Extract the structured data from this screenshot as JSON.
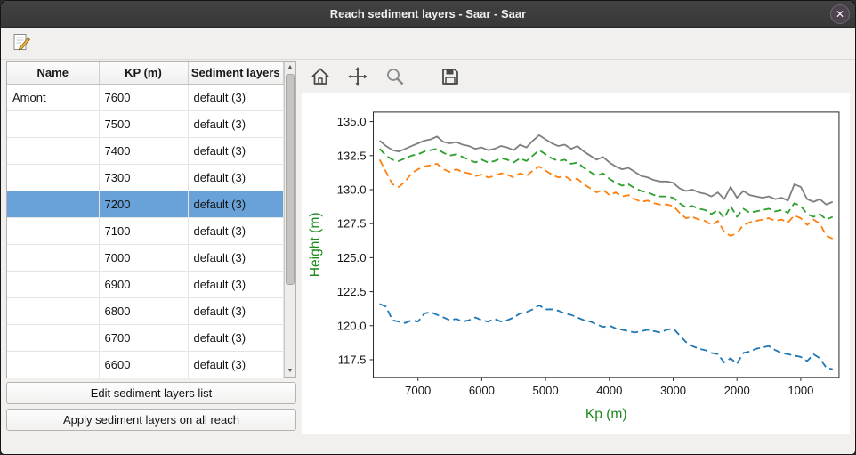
{
  "window": {
    "title": "Reach sediment layers - Saar - Saar",
    "close_glyph": "✕"
  },
  "main_toolbar": {
    "edit_icon": "edit-sediment-note-icon"
  },
  "table": {
    "headers": [
      "Name",
      "KP (m)",
      "Sediment layers"
    ],
    "selected_kp": "7200",
    "rows": [
      {
        "name": "Amont",
        "kp": "7600",
        "layers": "default (3)"
      },
      {
        "name": "",
        "kp": "7500",
        "layers": "default (3)"
      },
      {
        "name": "",
        "kp": "7400",
        "layers": "default (3)"
      },
      {
        "name": "",
        "kp": "7300",
        "layers": "default (3)"
      },
      {
        "name": "",
        "kp": "7200",
        "layers": "default (3)"
      },
      {
        "name": "",
        "kp": "7100",
        "layers": "default (3)"
      },
      {
        "name": "",
        "kp": "7000",
        "layers": "default (3)"
      },
      {
        "name": "",
        "kp": "6900",
        "layers": "default (3)"
      },
      {
        "name": "",
        "kp": "6800",
        "layers": "default (3)"
      },
      {
        "name": "",
        "kp": "6700",
        "layers": "default (3)"
      },
      {
        "name": "",
        "kp": "6600",
        "layers": "default (3)"
      }
    ]
  },
  "buttons": {
    "edit_list": "Edit sediment layers list",
    "apply_all": "Apply sediment layers on all reach"
  },
  "chart_toolbar": {
    "icons": [
      "home",
      "pan",
      "zoom",
      "save"
    ]
  },
  "colors": {
    "selection": "#68a2d8",
    "axis_label": "#1e8b1e"
  },
  "chart_data": {
    "type": "line",
    "title": "",
    "xlabel": "Kp (m)",
    "ylabel": "Height (m)",
    "axis_label_color": "#1e8b1e",
    "x_inverted": true,
    "xlim": [
      7700,
      400
    ],
    "ylim": [
      116.2,
      135.7
    ],
    "xticks": [
      7000,
      6000,
      5000,
      4000,
      3000,
      2000,
      1000
    ],
    "yticks": [
      117.5,
      120.0,
      122.5,
      125.0,
      127.5,
      130.0,
      132.5,
      135.0
    ],
    "grid": false,
    "legend": "none",
    "x": [
      7600,
      7500,
      7400,
      7300,
      7200,
      7100,
      7000,
      6900,
      6800,
      6700,
      6600,
      6500,
      6400,
      6300,
      6200,
      6100,
      6000,
      5900,
      5800,
      5700,
      5600,
      5500,
      5400,
      5300,
      5200,
      5100,
      5000,
      4900,
      4800,
      4700,
      4600,
      4500,
      4400,
      4300,
      4200,
      4100,
      4000,
      3900,
      3800,
      3700,
      3600,
      3500,
      3400,
      3300,
      3200,
      3100,
      3000,
      2900,
      2800,
      2700,
      2600,
      2500,
      2400,
      2300,
      2200,
      2100,
      2000,
      1900,
      1800,
      1700,
      1600,
      1500,
      1400,
      1300,
      1200,
      1100,
      1000,
      900,
      800,
      700,
      600,
      500
    ],
    "series": [
      {
        "name": "top-profile-gray",
        "color": "#7f7f7f",
        "dash": "solid",
        "values": [
          133.6,
          133.2,
          132.9,
          132.8,
          133.0,
          133.2,
          133.4,
          133.6,
          133.7,
          133.9,
          133.5,
          133.4,
          133.5,
          133.3,
          133.2,
          133.0,
          133.1,
          132.9,
          133.0,
          133.2,
          133.1,
          132.9,
          133.3,
          133.1,
          133.6,
          134.0,
          133.7,
          133.4,
          133.2,
          133.3,
          133.0,
          133.2,
          132.8,
          132.5,
          132.2,
          132.4,
          132.0,
          131.7,
          131.5,
          131.6,
          131.3,
          131.0,
          130.9,
          130.7,
          130.6,
          130.6,
          130.5,
          130.1,
          129.9,
          130.0,
          129.8,
          129.7,
          129.5,
          129.8,
          129.3,
          130.2,
          129.4,
          129.9,
          129.6,
          129.5,
          129.4,
          129.5,
          129.3,
          129.4,
          129.2,
          130.4,
          130.2,
          129.3,
          129.1,
          129.3,
          128.9,
          129.1
        ]
      },
      {
        "name": "sediment-layer-green",
        "color": "#2ca02c",
        "dash": "dashed",
        "values": [
          133.0,
          132.5,
          132.2,
          132.1,
          132.3,
          132.5,
          132.6,
          132.8,
          132.9,
          133.0,
          132.7,
          132.5,
          132.6,
          132.4,
          132.2,
          132.0,
          132.2,
          132.0,
          132.1,
          132.3,
          132.2,
          132.0,
          132.3,
          132.1,
          132.5,
          132.9,
          132.6,
          132.3,
          132.1,
          132.2,
          131.9,
          132.0,
          131.6,
          131.3,
          131.0,
          131.2,
          130.8,
          130.5,
          130.3,
          130.4,
          130.1,
          129.9,
          129.8,
          129.6,
          129.5,
          129.5,
          129.4,
          129.0,
          128.7,
          128.8,
          128.6,
          128.5,
          128.2,
          128.5,
          127.9,
          128.8,
          128.0,
          128.6,
          128.3,
          128.4,
          128.5,
          128.6,
          128.4,
          128.5,
          128.3,
          129.0,
          128.8,
          128.2,
          128.0,
          128.2,
          127.8,
          128.0
        ]
      },
      {
        "name": "sediment-layer-orange",
        "color": "#ff7f0e",
        "dash": "dashed",
        "values": [
          132.2,
          131.3,
          130.4,
          130.2,
          130.6,
          131.2,
          131.5,
          131.7,
          131.8,
          131.9,
          131.5,
          131.3,
          131.5,
          131.3,
          131.2,
          131.0,
          131.1,
          130.9,
          131.0,
          131.2,
          131.1,
          130.9,
          131.2,
          131.0,
          131.4,
          131.7,
          131.4,
          131.1,
          130.9,
          131.0,
          130.7,
          130.8,
          130.4,
          130.1,
          129.8,
          130.0,
          129.6,
          129.8,
          129.5,
          129.6,
          129.3,
          129.1,
          129.2,
          129.0,
          128.9,
          128.9,
          128.8,
          128.3,
          127.9,
          128.0,
          127.8,
          127.7,
          127.4,
          127.7,
          126.9,
          126.6,
          126.8,
          127.4,
          127.6,
          127.7,
          127.8,
          127.9,
          127.7,
          127.8,
          127.6,
          128.1,
          127.9,
          127.4,
          127.8,
          127.5,
          126.6,
          126.4
        ]
      },
      {
        "name": "bottom-profile-blue",
        "color": "#1f77b4",
        "dash": "dashed",
        "values": [
          121.6,
          121.4,
          120.4,
          120.3,
          120.2,
          120.4,
          120.3,
          120.9,
          121.0,
          120.8,
          120.6,
          120.4,
          120.5,
          120.3,
          120.4,
          120.6,
          120.4,
          120.3,
          120.5,
          120.3,
          120.4,
          120.6,
          120.9,
          121.0,
          121.2,
          121.5,
          121.2,
          121.2,
          121.1,
          120.9,
          120.8,
          120.6,
          120.4,
          120.3,
          120.1,
          119.9,
          120.0,
          119.8,
          119.7,
          119.6,
          119.5,
          119.6,
          119.7,
          119.6,
          119.5,
          119.7,
          119.8,
          119.3,
          118.8,
          118.5,
          118.3,
          118.2,
          118.0,
          117.9,
          117.3,
          117.6,
          117.2,
          118.0,
          118.1,
          118.3,
          118.4,
          118.5,
          118.2,
          118.0,
          117.9,
          117.8,
          117.7,
          117.4,
          117.9,
          117.6,
          116.9,
          116.8
        ]
      }
    ]
  }
}
